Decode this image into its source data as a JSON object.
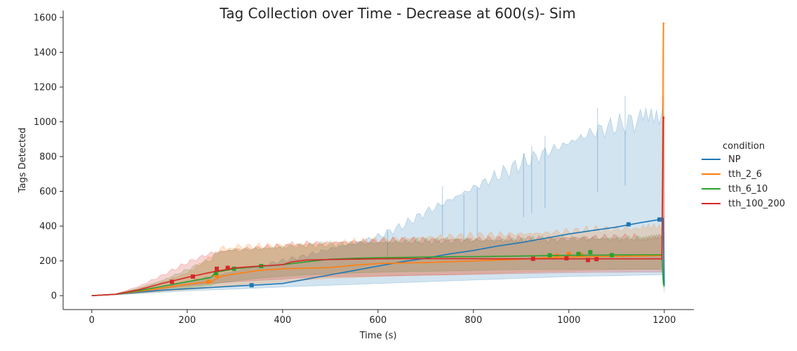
{
  "chart_data": {
    "type": "line",
    "title": "Tag Collection over Time - Decrease at 600(s)- Sim",
    "xlabel": "Time (s)",
    "ylabel": "Tags Detected",
    "xlim": [
      -60,
      1262
    ],
    "ylim": [
      -80,
      1640
    ],
    "xticks": [
      0,
      200,
      400,
      600,
      800,
      1000,
      1200
    ],
    "yticks": [
      0,
      200,
      400,
      600,
      800,
      1000,
      1200,
      1400,
      1600
    ],
    "grid": false,
    "legend": {
      "title": "condition",
      "placement": "right"
    },
    "series": [
      {
        "name": "NP",
        "color": "#1f77b4",
        "x": [
          0,
          50,
          100,
          150,
          200,
          250,
          300,
          350,
          400,
          450,
          500,
          550,
          600,
          650,
          700,
          750,
          800,
          850,
          900,
          950,
          1000,
          1050,
          1100,
          1150,
          1195,
          1198,
          1200
        ],
        "y": [
          0,
          8,
          20,
          32,
          40,
          47,
          55,
          62,
          70,
          95,
          120,
          145,
          170,
          195,
          215,
          240,
          260,
          285,
          305,
          330,
          355,
          375,
          395,
          420,
          440,
          445,
          55
        ],
        "upper": [
          0,
          10,
          30,
          55,
          80,
          110,
          140,
          170,
          200,
          230,
          270,
          300,
          340,
          400,
          480,
          550,
          620,
          690,
          760,
          820,
          880,
          940,
          980,
          1010,
          1040,
          1100,
          60
        ],
        "lower": [
          0,
          5,
          12,
          20,
          27,
          33,
          38,
          44,
          50,
          55,
          60,
          65,
          70,
          75,
          80,
          85,
          90,
          95,
          100,
          105,
          110,
          112,
          115,
          118,
          120,
          120,
          20
        ],
        "markers": [
          [
            335,
            60
          ],
          [
            1125,
            410
          ],
          [
            1190,
            438
          ]
        ],
        "spikes": [
          [
            620,
            370
          ],
          [
            735,
            630
          ],
          [
            780,
            580
          ],
          [
            808,
            620
          ],
          [
            905,
            820
          ],
          [
            922,
            860
          ],
          [
            950,
            920
          ],
          [
            1060,
            1080
          ],
          [
            1118,
            1150
          ]
        ]
      },
      {
        "name": "tth_2_6",
        "color": "#ff7f0e",
        "x": [
          0,
          50,
          100,
          150,
          200,
          230,
          250,
          270,
          300,
          350,
          400,
          450,
          500,
          550,
          600,
          650,
          700,
          750,
          800,
          850,
          900,
          950,
          1000,
          1050,
          1100,
          1150,
          1195,
          1198,
          1200
        ],
        "y": [
          0,
          8,
          25,
          45,
          65,
          75,
          80,
          110,
          125,
          145,
          155,
          158,
          162,
          175,
          185,
          188,
          190,
          195,
          200,
          205,
          210,
          218,
          222,
          225,
          226,
          228,
          230,
          1570,
          1560
        ],
        "upper": [
          0,
          10,
          40,
          80,
          130,
          190,
          220,
          270,
          280,
          285,
          290,
          295,
          300,
          310,
          320,
          330,
          335,
          340,
          345,
          350,
          355,
          360,
          370,
          380,
          385,
          385,
          390,
          1570,
          1560
        ],
        "lower": [
          0,
          5,
          15,
          25,
          35,
          40,
          45,
          55,
          60,
          70,
          80,
          90,
          100,
          105,
          110,
          115,
          118,
          120,
          125,
          130,
          135,
          138,
          140,
          145,
          148,
          150,
          150,
          150,
          150
        ],
        "markers": [
          [
            245,
            80
          ],
          [
            262,
            115
          ],
          [
            975,
            230
          ],
          [
            1000,
            240
          ],
          [
            1025,
            235
          ]
        ]
      },
      {
        "name": "tth_6_10",
        "color": "#2ca02c",
        "x": [
          0,
          50,
          100,
          150,
          200,
          250,
          260,
          300,
          350,
          400,
          450,
          500,
          550,
          600,
          650,
          700,
          750,
          800,
          850,
          900,
          950,
          1000,
          1050,
          1100,
          1150,
          1195,
          1198,
          1200
        ],
        "y": [
          0,
          8,
          30,
          55,
          80,
          105,
          135,
          155,
          168,
          178,
          195,
          210,
          215,
          218,
          220,
          222,
          224,
          225,
          226,
          228,
          230,
          232,
          233,
          234,
          235,
          235,
          70,
          55
        ],
        "upper": [
          0,
          10,
          45,
          90,
          150,
          210,
          240,
          260,
          270,
          280,
          290,
          295,
          300,
          305,
          310,
          312,
          315,
          318,
          320,
          322,
          324,
          326,
          328,
          330,
          330,
          330,
          330,
          60
        ],
        "lower": [
          0,
          5,
          18,
          30,
          45,
          60,
          70,
          85,
          100,
          110,
          120,
          125,
          130,
          135,
          138,
          140,
          142,
          145,
          148,
          150,
          150,
          150,
          152,
          152,
          152,
          152,
          50,
          50
        ],
        "markers": [
          [
            260,
            130
          ],
          [
            298,
            155
          ],
          [
            355,
            170
          ],
          [
            960,
            232
          ],
          [
            1020,
            240
          ],
          [
            1045,
            250
          ],
          [
            1090,
            233
          ]
        ]
      },
      {
        "name": "tth_100_200",
        "color": "#d62728",
        "x": [
          0,
          50,
          100,
          150,
          200,
          250,
          300,
          350,
          400,
          420,
          450,
          500,
          550,
          600,
          650,
          700,
          750,
          800,
          850,
          900,
          950,
          1000,
          1050,
          1100,
          1150,
          1195,
          1198,
          1200
        ],
        "y": [
          0,
          8,
          35,
          72,
          105,
          135,
          160,
          170,
          178,
          195,
          205,
          208,
          210,
          212,
          213,
          213,
          213,
          213,
          212,
          212,
          212,
          212,
          212,
          212,
          212,
          212,
          1030,
          1020
        ],
        "upper": [
          0,
          10,
          55,
          120,
          190,
          245,
          265,
          275,
          285,
          295,
          300,
          305,
          310,
          315,
          318,
          320,
          322,
          324,
          326,
          328,
          330,
          332,
          334,
          335,
          336,
          337,
          1030,
          1020
        ],
        "lower": [
          0,
          5,
          20,
          40,
          55,
          70,
          80,
          88,
          95,
          100,
          105,
          108,
          110,
          112,
          115,
          118,
          120,
          122,
          125,
          128,
          130,
          132,
          134,
          135,
          136,
          137,
          130,
          130
        ],
        "markers": [
          [
            168,
            80
          ],
          [
            212,
            110
          ],
          [
            262,
            155
          ],
          [
            285,
            160
          ],
          [
            925,
            212
          ],
          [
            995,
            215
          ],
          [
            1040,
            205
          ],
          [
            1058,
            210
          ]
        ]
      }
    ]
  }
}
